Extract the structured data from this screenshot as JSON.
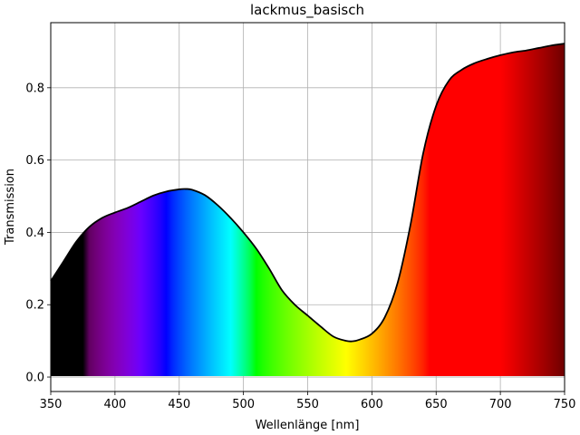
{
  "chart_data": {
    "type": "area",
    "title": "lackmus_basisch",
    "xlabel": "Wellenlänge [nm]",
    "ylabel": "Transmission",
    "xlim": [
      350,
      750
    ],
    "ylim": [
      -0.04,
      0.98
    ],
    "xticks": [
      350,
      400,
      450,
      500,
      550,
      600,
      650,
      700,
      750
    ],
    "yticks": [
      0.0,
      0.2,
      0.4,
      0.6,
      0.8
    ],
    "grid": true,
    "fill": "visible-spectrum-gradient",
    "line_color": "#000000",
    "x": [
      350,
      360,
      370,
      380,
      390,
      400,
      410,
      420,
      430,
      440,
      450,
      455,
      460,
      470,
      480,
      490,
      500,
      510,
      520,
      530,
      540,
      550,
      560,
      570,
      580,
      585,
      590,
      600,
      610,
      620,
      630,
      640,
      650,
      660,
      670,
      680,
      690,
      700,
      710,
      720,
      730,
      740,
      750
    ],
    "y": [
      0.265,
      0.32,
      0.375,
      0.415,
      0.44,
      0.455,
      0.468,
      0.485,
      0.502,
      0.513,
      0.519,
      0.52,
      0.518,
      0.503,
      0.475,
      0.44,
      0.4,
      0.355,
      0.3,
      0.24,
      0.2,
      0.17,
      0.14,
      0.112,
      0.1,
      0.099,
      0.103,
      0.12,
      0.165,
      0.26,
      0.42,
      0.62,
      0.75,
      0.82,
      0.85,
      0.868,
      0.88,
      0.89,
      0.898,
      0.903,
      0.91,
      0.917,
      0.922
    ]
  }
}
